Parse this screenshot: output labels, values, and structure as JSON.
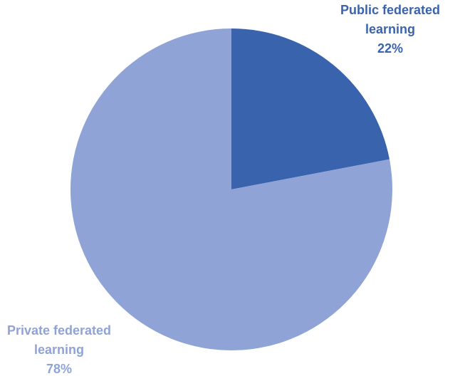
{
  "chart_data": {
    "type": "pie",
    "categories": [
      "Public federated learning",
      "Private federated learning"
    ],
    "values": [
      22,
      78
    ],
    "value_labels": [
      "22%",
      "78%"
    ],
    "colors": [
      "#3a63ad",
      "#8fa3d6"
    ]
  }
}
